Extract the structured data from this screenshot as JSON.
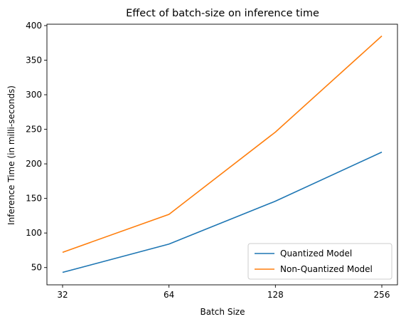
{
  "chart_data": {
    "type": "line",
    "title": "Effect of batch-size on inference time",
    "xlabel": "Batch Size",
    "ylabel": "Inference Time (in milli-seconds)",
    "categories": [
      "32",
      "64",
      "128",
      "256"
    ],
    "ylim": [
      25,
      402
    ],
    "yticks": [
      50,
      100,
      150,
      200,
      250,
      300,
      350,
      400
    ],
    "grid": false,
    "legend_position": "lower-right",
    "series": [
      {
        "name": "Quantized Model",
        "color": "#1f77b4",
        "values": [
          43,
          84,
          146,
          217
        ]
      },
      {
        "name": "Non-Quantized Model",
        "color": "#ff7f0e",
        "values": [
          72,
          127,
          246,
          385
        ]
      }
    ]
  }
}
